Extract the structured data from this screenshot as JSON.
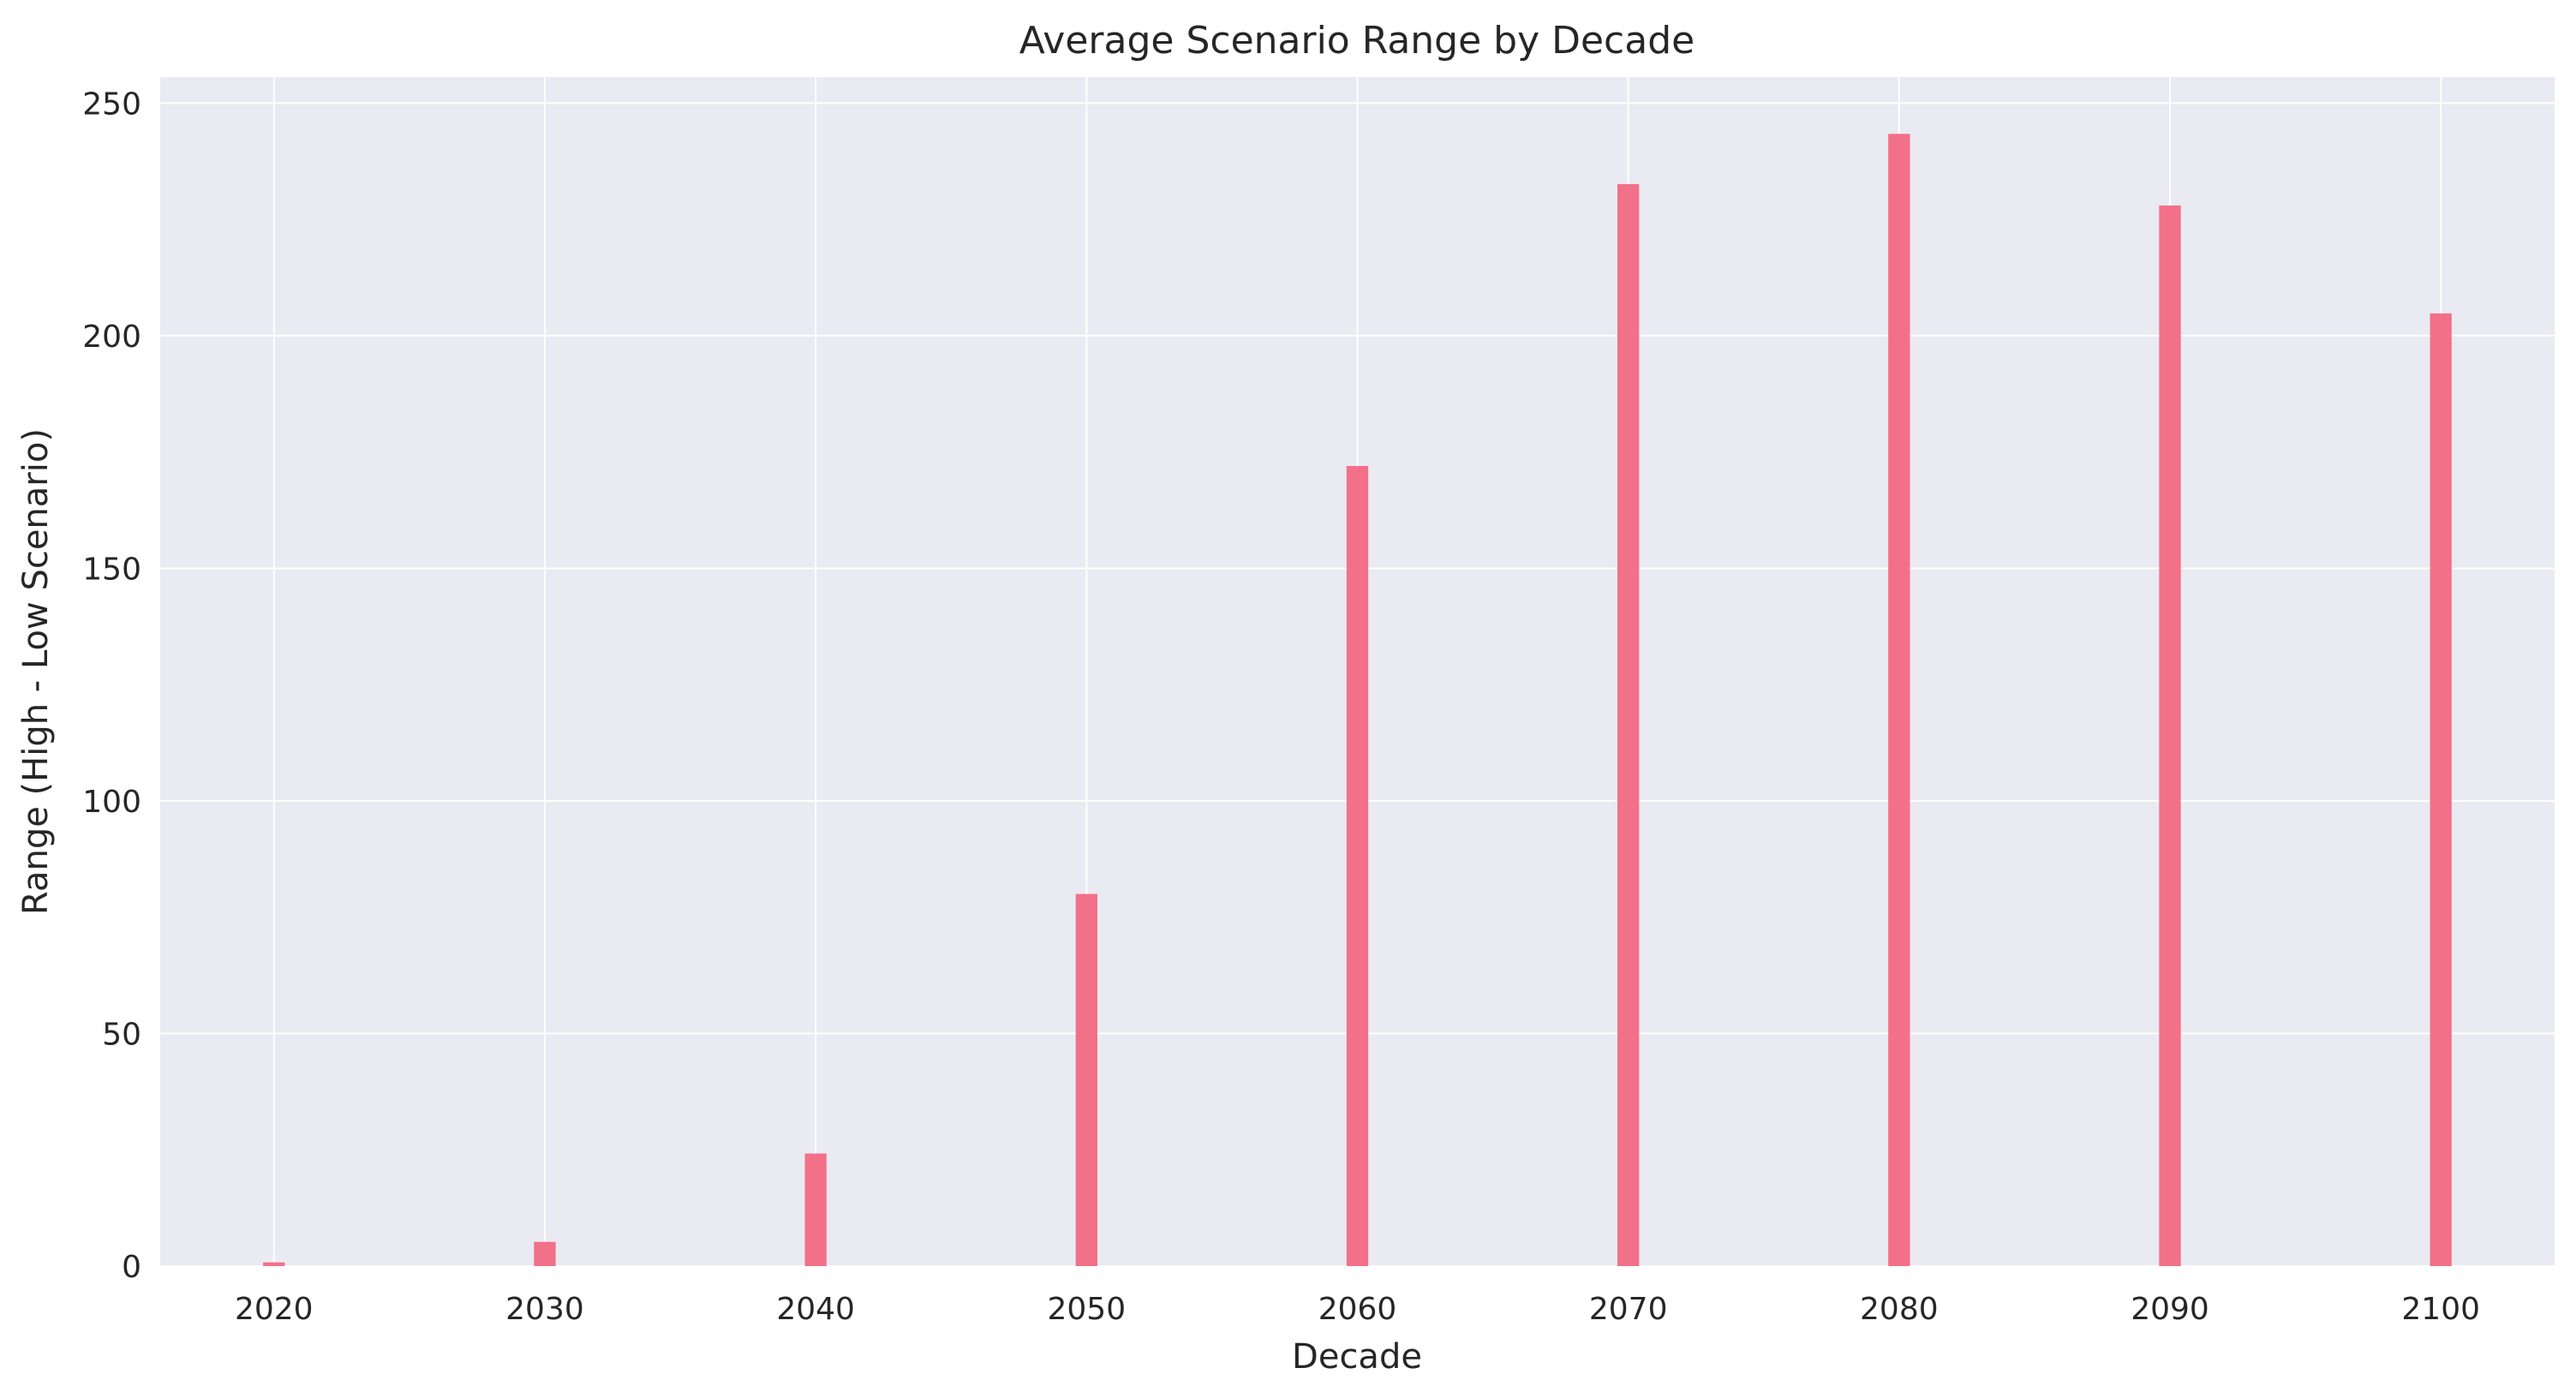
{
  "chart_data": {
    "type": "bar",
    "title": "Average Scenario Range by Decade",
    "xlabel": "Decade",
    "ylabel": "Range (High - Low Scenario)",
    "x": [
      2020,
      2030,
      2040,
      2050,
      2060,
      2070,
      2080,
      2090,
      2100
    ],
    "values": [
      0.8,
      5.2,
      24.2,
      80.0,
      172.0,
      232.6,
      243.4,
      228.0,
      204.8
    ],
    "xlim": [
      2015.8,
      2104.2
    ],
    "ylim": [
      0,
      255.6
    ],
    "xticks": [
      2020,
      2030,
      2040,
      2050,
      2060,
      2070,
      2080,
      2090,
      2100
    ],
    "yticks": [
      0,
      50,
      100,
      150,
      200,
      250
    ],
    "bar_width_years": 0.8,
    "grid": true,
    "legend": "none",
    "colors": {
      "bar": "#f37089",
      "plot_background": "#eaeaf2",
      "grid": "#ffffff",
      "text": "#262626"
    }
  }
}
